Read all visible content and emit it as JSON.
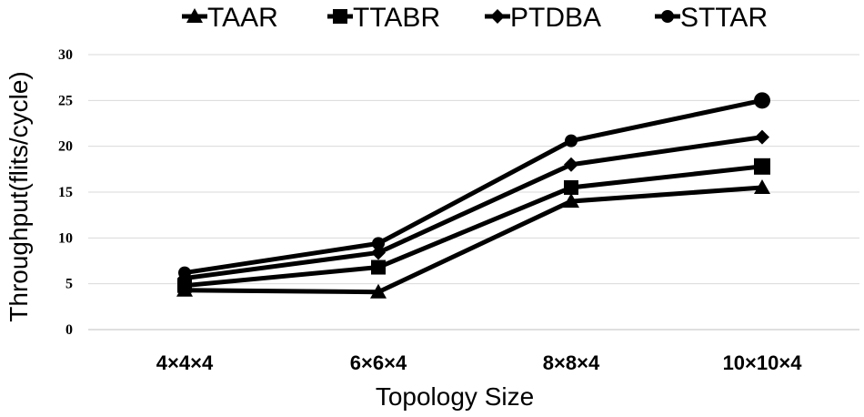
{
  "chart_data": {
    "type": "line",
    "categories": [
      "4×4×4",
      "6×6×4",
      "8×8×4",
      "10×10×4"
    ],
    "series": [
      {
        "name": "TAAR",
        "marker": "triangle",
        "values": [
          4.3,
          4.1,
          14.0,
          15.5
        ]
      },
      {
        "name": "TTABR",
        "marker": "square",
        "values": [
          4.8,
          6.8,
          15.5,
          17.8
        ]
      },
      {
        "name": "PTDBA",
        "marker": "diamond",
        "values": [
          5.6,
          8.4,
          18.0,
          21.0
        ]
      },
      {
        "name": "STTAR",
        "marker": "circle",
        "values": [
          6.2,
          9.4,
          20.6,
          25.0
        ]
      }
    ],
    "xlabel": "Topology Size",
    "ylabel": "Throughput(flits/cycle)",
    "ylim": [
      0,
      30
    ],
    "yticks": [
      "0",
      "5",
      "10",
      "15",
      "20",
      "25",
      "30"
    ],
    "grid": true,
    "legend": "top",
    "color": "#000000"
  }
}
